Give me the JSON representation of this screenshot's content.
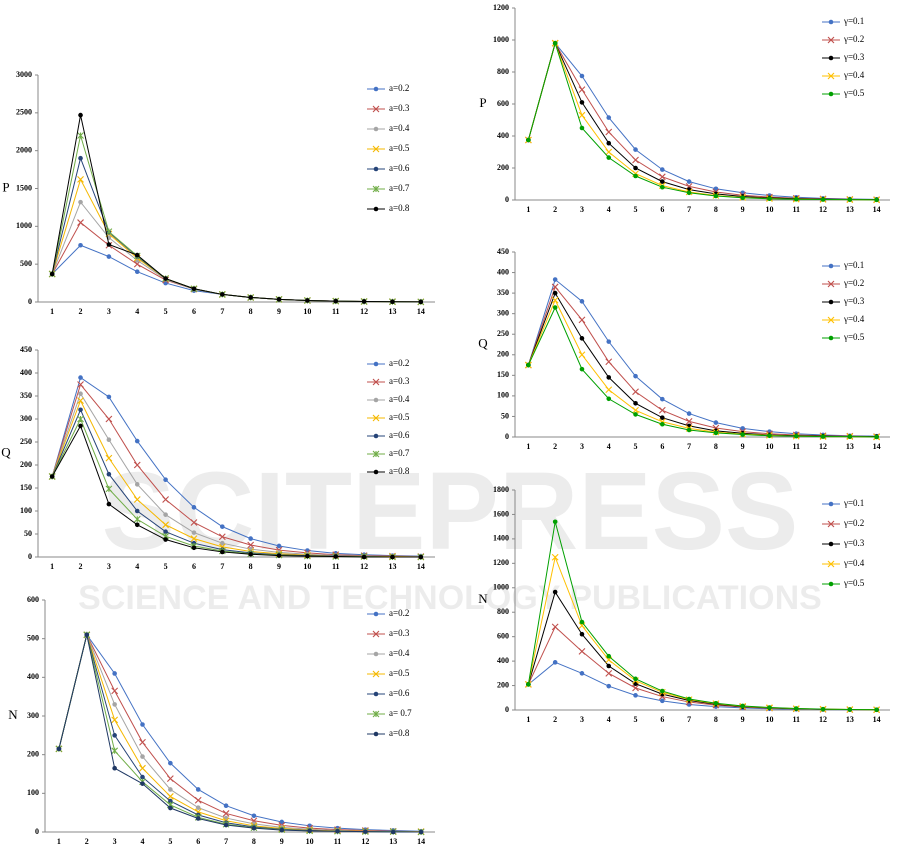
{
  "watermark": {
    "title": "SCITEPRESS",
    "subtitle": "SCIENCE AND TECHNOLOGY PUBLICATIONS"
  },
  "chart_data": [
    {
      "type": "line",
      "ylabel": "P",
      "categories": [
        "1",
        "2",
        "3",
        "4",
        "5",
        "6",
        "7",
        "8",
        "9",
        "10",
        "11",
        "12",
        "13",
        "14"
      ],
      "ylim": [
        0,
        3000
      ],
      "yticks": [
        0,
        500,
        1000,
        1500,
        2000,
        2500,
        3000
      ],
      "series": [
        {
          "name": "a=0.2",
          "color": "#4472c4",
          "marker": "circle",
          "values": [
            370,
            750,
            600,
            400,
            250,
            150,
            100,
            60,
            35,
            20,
            12,
            7,
            4,
            2
          ]
        },
        {
          "name": "a=0.3",
          "color": "#c0504d",
          "marker": "x",
          "values": [
            370,
            1050,
            750,
            500,
            290,
            170,
            100,
            60,
            35,
            20,
            12,
            7,
            4,
            2
          ]
        },
        {
          "name": "a=0.4",
          "color": "#a5a5a5",
          "marker": "circle",
          "values": [
            370,
            1320,
            850,
            550,
            300,
            170,
            100,
            60,
            35,
            20,
            12,
            7,
            4,
            2
          ]
        },
        {
          "name": "a=0.5",
          "color": "#f5b800",
          "marker": "x",
          "values": [
            370,
            1620,
            900,
            580,
            310,
            175,
            100,
            60,
            35,
            20,
            12,
            7,
            4,
            2
          ]
        },
        {
          "name": "a=0.6",
          "color": "#264478",
          "marker": "circle",
          "values": [
            370,
            1900,
            920,
            600,
            310,
            175,
            100,
            60,
            35,
            20,
            12,
            7,
            4,
            2
          ]
        },
        {
          "name": "a=0.7",
          "color": "#70ad47",
          "marker": "star",
          "values": [
            370,
            2200,
            930,
            610,
            310,
            175,
            100,
            60,
            35,
            20,
            12,
            7,
            4,
            2
          ]
        },
        {
          "name": "a=0.8",
          "color": "#000000",
          "marker": "circle",
          "values": [
            370,
            2470,
            760,
            620,
            310,
            175,
            100,
            60,
            35,
            20,
            12,
            7,
            4,
            2
          ]
        }
      ]
    },
    {
      "type": "line",
      "ylabel": "Q",
      "categories": [
        "1",
        "2",
        "3",
        "4",
        "5",
        "6",
        "7",
        "8",
        "9",
        "10",
        "11",
        "12",
        "13",
        "14"
      ],
      "ylim": [
        0,
        450
      ],
      "yticks": [
        0,
        50,
        100,
        150,
        200,
        250,
        300,
        350,
        400,
        450
      ],
      "series": [
        {
          "name": "a=0.2",
          "color": "#4472c4",
          "marker": "circle",
          "values": [
            175,
            390,
            348,
            252,
            168,
            108,
            66,
            40,
            24,
            14,
            8,
            5,
            3,
            2
          ]
        },
        {
          "name": "a=0.3",
          "color": "#c0504d",
          "marker": "x",
          "values": [
            175,
            375,
            300,
            200,
            125,
            75,
            44,
            26,
            15,
            9,
            5,
            3,
            2,
            1
          ]
        },
        {
          "name": "a=0.4",
          "color": "#a5a5a5",
          "marker": "circle",
          "values": [
            175,
            355,
            255,
            158,
            92,
            53,
            30,
            17,
            10,
            6,
            3,
            2,
            1,
            1
          ]
        },
        {
          "name": "a=0.5",
          "color": "#f5b800",
          "marker": "x",
          "values": [
            175,
            340,
            215,
            125,
            70,
            40,
            22,
            12,
            7,
            4,
            2,
            1,
            1,
            0
          ]
        },
        {
          "name": "a=0.6",
          "color": "#264478",
          "marker": "circle",
          "values": [
            175,
            320,
            180,
            100,
            55,
            30,
            16,
            9,
            5,
            3,
            2,
            1,
            0,
            0
          ]
        },
        {
          "name": "a=0.7",
          "color": "#70ad47",
          "marker": "star",
          "values": [
            175,
            300,
            148,
            82,
            45,
            24,
            13,
            7,
            4,
            2,
            1,
            1,
            0,
            0
          ]
        },
        {
          "name": "a=0.8",
          "color": "#000000",
          "marker": "circle",
          "values": [
            175,
            285,
            115,
            70,
            38,
            20,
            11,
            6,
            3,
            2,
            1,
            0,
            0,
            0
          ]
        }
      ]
    },
    {
      "type": "line",
      "ylabel": "N",
      "categories": [
        "1",
        "2",
        "3",
        "4",
        "5",
        "6",
        "7",
        "8",
        "9",
        "10",
        "11",
        "12",
        "13",
        "14"
      ],
      "ylim": [
        0,
        600
      ],
      "yticks": [
        0,
        100,
        200,
        300,
        400,
        500,
        600
      ],
      "series": [
        {
          "name": "a=0.2",
          "color": "#4472c4",
          "marker": "circle",
          "values": [
            215,
            510,
            410,
            278,
            178,
            110,
            68,
            42,
            26,
            16,
            10,
            6,
            4,
            2
          ]
        },
        {
          "name": "a=0.3",
          "color": "#c0504d",
          "marker": "x",
          "values": [
            215,
            510,
            365,
            232,
            138,
            82,
            48,
            29,
            17,
            10,
            6,
            4,
            2,
            1
          ]
        },
        {
          "name": "a=0.4",
          "color": "#a5a5a5",
          "marker": "circle",
          "values": [
            215,
            510,
            330,
            195,
            110,
            63,
            36,
            21,
            12,
            7,
            4,
            2,
            1,
            1
          ]
        },
        {
          "name": "a=0.5",
          "color": "#f5b800",
          "marker": "x",
          "values": [
            215,
            510,
            290,
            165,
            92,
            52,
            29,
            16,
            9,
            5,
            3,
            2,
            1,
            1
          ]
        },
        {
          "name": "a=0.6",
          "color": "#264478",
          "marker": "circle",
          "values": [
            215,
            510,
            250,
            142,
            80,
            44,
            24,
            13,
            7,
            4,
            2,
            1,
            1,
            0
          ]
        },
        {
          "name": "a= 0.7",
          "color": "#70ad47",
          "marker": "star",
          "values": [
            215,
            510,
            210,
            130,
            70,
            38,
            20,
            11,
            6,
            3,
            2,
            1,
            1,
            0
          ]
        },
        {
          "name": "a=0.8",
          "color": "#1f3864",
          "marker": "circle",
          "values": [
            215,
            510,
            165,
            125,
            62,
            35,
            18,
            10,
            5,
            3,
            2,
            1,
            0,
            0
          ]
        }
      ]
    },
    {
      "type": "line",
      "ylabel": "P",
      "categories": [
        "1",
        "2",
        "3",
        "4",
        "5",
        "6",
        "7",
        "8",
        "9",
        "10",
        "11",
        "12",
        "13",
        "14"
      ],
      "ylim": [
        0,
        1200
      ],
      "yticks": [
        0,
        200,
        400,
        600,
        800,
        1000,
        1200
      ],
      "series": [
        {
          "name": "γ=0.1",
          "color": "#4472c4",
          "marker": "circle",
          "values": [
            375,
            980,
            775,
            515,
            315,
            190,
            115,
            70,
            45,
            28,
            17,
            10,
            6,
            4
          ]
        },
        {
          "name": "γ=0.2",
          "color": "#c0504d",
          "marker": "x",
          "values": [
            375,
            980,
            690,
            425,
            250,
            145,
            85,
            50,
            30,
            18,
            11,
            7,
            4,
            2
          ]
        },
        {
          "name": "γ=0.3",
          "color": "#000000",
          "marker": "circle",
          "values": [
            375,
            980,
            610,
            355,
            200,
            115,
            65,
            38,
            22,
            13,
            8,
            5,
            3,
            2
          ]
        },
        {
          "name": "γ=0.4",
          "color": "#ffc000",
          "marker": "x",
          "values": [
            375,
            980,
            530,
            300,
            165,
            90,
            50,
            28,
            16,
            9,
            5,
            3,
            2,
            1
          ]
        },
        {
          "name": "γ=0.5",
          "color": "#00a000",
          "marker": "circle",
          "values": [
            375,
            980,
            450,
            265,
            150,
            80,
            45,
            25,
            14,
            8,
            5,
            3,
            2,
            1
          ]
        }
      ]
    },
    {
      "type": "line",
      "ylabel": "Q",
      "categories": [
        "1",
        "2",
        "3",
        "4",
        "5",
        "6",
        "7",
        "8",
        "9",
        "10",
        "11",
        "12",
        "13",
        "14"
      ],
      "ylim": [
        0,
        450
      ],
      "yticks": [
        0,
        50,
        100,
        150,
        200,
        250,
        300,
        350,
        400,
        450
      ],
      "series": [
        {
          "name": "γ=0.1",
          "color": "#4472c4",
          "marker": "circle",
          "values": [
            175,
            383,
            330,
            232,
            148,
            92,
            57,
            35,
            21,
            13,
            8,
            5,
            3,
            2
          ]
        },
        {
          "name": "γ=0.2",
          "color": "#c0504d",
          "marker": "x",
          "values": [
            175,
            365,
            285,
            183,
            110,
            65,
            38,
            22,
            13,
            8,
            5,
            3,
            2,
            1
          ]
        },
        {
          "name": "γ=0.3",
          "color": "#000000",
          "marker": "circle",
          "values": [
            175,
            350,
            240,
            145,
            82,
            47,
            27,
            15,
            9,
            5,
            3,
            2,
            1,
            1
          ]
        },
        {
          "name": "γ=0.4",
          "color": "#ffc000",
          "marker": "x",
          "values": [
            175,
            333,
            200,
            115,
            65,
            37,
            21,
            12,
            7,
            4,
            2,
            1,
            1,
            0
          ]
        },
        {
          "name": "γ=0.5",
          "color": "#00a000",
          "marker": "circle",
          "values": [
            175,
            315,
            165,
            93,
            55,
            31,
            17,
            10,
            6,
            3,
            2,
            1,
            1,
            0
          ]
        }
      ]
    },
    {
      "type": "line",
      "ylabel": "N",
      "categories": [
        "1",
        "2",
        "3",
        "4",
        "5",
        "6",
        "7",
        "8",
        "9",
        "10",
        "11",
        "12",
        "13",
        "14"
      ],
      "ylim": [
        0,
        1800
      ],
      "yticks": [
        0,
        200,
        400,
        600,
        800,
        1000,
        1200,
        1400,
        1600,
        1800
      ],
      "series": [
        {
          "name": "γ=0.1",
          "color": "#4472c4",
          "marker": "circle",
          "values": [
            210,
            390,
            300,
            195,
            120,
            75,
            45,
            28,
            17,
            10,
            6,
            4,
            2,
            1
          ]
        },
        {
          "name": "γ=0.2",
          "color": "#c0504d",
          "marker": "x",
          "values": [
            210,
            680,
            480,
            300,
            180,
            110,
            65,
            40,
            25,
            15,
            9,
            5,
            3,
            2
          ]
        },
        {
          "name": "γ=0.3",
          "color": "#000000",
          "marker": "circle",
          "values": [
            210,
            965,
            620,
            360,
            215,
            130,
            78,
            47,
            28,
            17,
            10,
            6,
            4,
            2
          ]
        },
        {
          "name": "γ=0.4",
          "color": "#ffc000",
          "marker": "x",
          "values": [
            210,
            1250,
            690,
            410,
            240,
            145,
            85,
            52,
            31,
            19,
            11,
            7,
            4,
            2
          ]
        },
        {
          "name": "γ=0.5",
          "color": "#00a000",
          "marker": "circle",
          "values": [
            210,
            1540,
            720,
            440,
            255,
            155,
            90,
            55,
            33,
            20,
            12,
            7,
            4,
            2
          ]
        }
      ]
    }
  ]
}
